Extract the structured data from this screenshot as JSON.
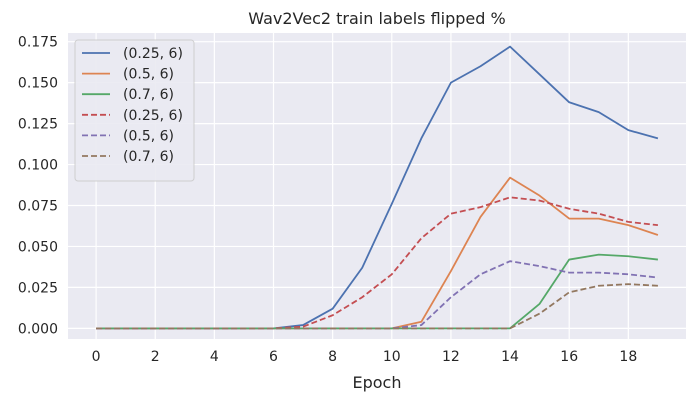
{
  "chart_data": {
    "type": "line",
    "title": "Wav2Vec2 train labels flipped %",
    "xlabel": "Epoch",
    "ylabel": "",
    "xlim": [
      -0.95,
      19.95
    ],
    "ylim": [
      -0.0065,
      0.1803
    ],
    "xticks": [
      0,
      2,
      4,
      6,
      8,
      10,
      12,
      14,
      16,
      18
    ],
    "yticks": [
      0.0,
      0.025,
      0.05,
      0.075,
      0.1,
      0.125,
      0.15,
      0.175
    ],
    "ytick_labels": [
      "0.000",
      "0.025",
      "0.050",
      "0.075",
      "0.100",
      "0.125",
      "0.150",
      "0.175"
    ],
    "grid": true,
    "background": "#eaeaf2",
    "legend_position": "top-left",
    "x": [
      0,
      1,
      2,
      3,
      4,
      5,
      6,
      7,
      8,
      9,
      10,
      11,
      12,
      13,
      14,
      15,
      16,
      17,
      18,
      19
    ],
    "series": [
      {
        "name": "(0.25, 6)",
        "color": "#4c72b0",
        "dash": "solid",
        "values": [
          0,
          0,
          0,
          0,
          0,
          0,
          0,
          0.002,
          0.012,
          0.037,
          0.076,
          0.116,
          0.15,
          0.16,
          0.172,
          0.155,
          0.138,
          0.132,
          0.121,
          0.116
        ]
      },
      {
        "name": "(0.5, 6)",
        "color": "#dd8452",
        "dash": "solid",
        "values": [
          0,
          0,
          0,
          0,
          0,
          0,
          0,
          0,
          0,
          0,
          0,
          0.004,
          0.035,
          0.068,
          0.092,
          0.081,
          0.067,
          0.067,
          0.063,
          0.057
        ]
      },
      {
        "name": "(0.7, 6)",
        "color": "#55a868",
        "dash": "solid",
        "values": [
          0,
          0,
          0,
          0,
          0,
          0,
          0,
          0,
          0,
          0,
          0,
          0,
          0,
          0,
          0,
          0.015,
          0.042,
          0.045,
          0.044,
          0.042
        ]
      },
      {
        "name": "(0.25, 6)",
        "color": "#c44e52",
        "dash": "dashed",
        "values": [
          0,
          0,
          0,
          0,
          0,
          0,
          0,
          0.001,
          0.008,
          0.019,
          0.033,
          0.055,
          0.07,
          0.074,
          0.08,
          0.078,
          0.073,
          0.07,
          0.065,
          0.063
        ]
      },
      {
        "name": "(0.5, 6)",
        "color": "#8172b3",
        "dash": "dashed",
        "values": [
          0,
          0,
          0,
          0,
          0,
          0,
          0,
          0,
          0,
          0,
          0,
          0.002,
          0.019,
          0.033,
          0.041,
          0.038,
          0.034,
          0.034,
          0.033,
          0.031
        ]
      },
      {
        "name": "(0.7, 6)",
        "color": "#937860",
        "dash": "dashed",
        "values": [
          0,
          0,
          0,
          0,
          0,
          0,
          0,
          0,
          0,
          0,
          0,
          0,
          0,
          0,
          0,
          0.009,
          0.022,
          0.026,
          0.027,
          0.026
        ]
      }
    ]
  }
}
